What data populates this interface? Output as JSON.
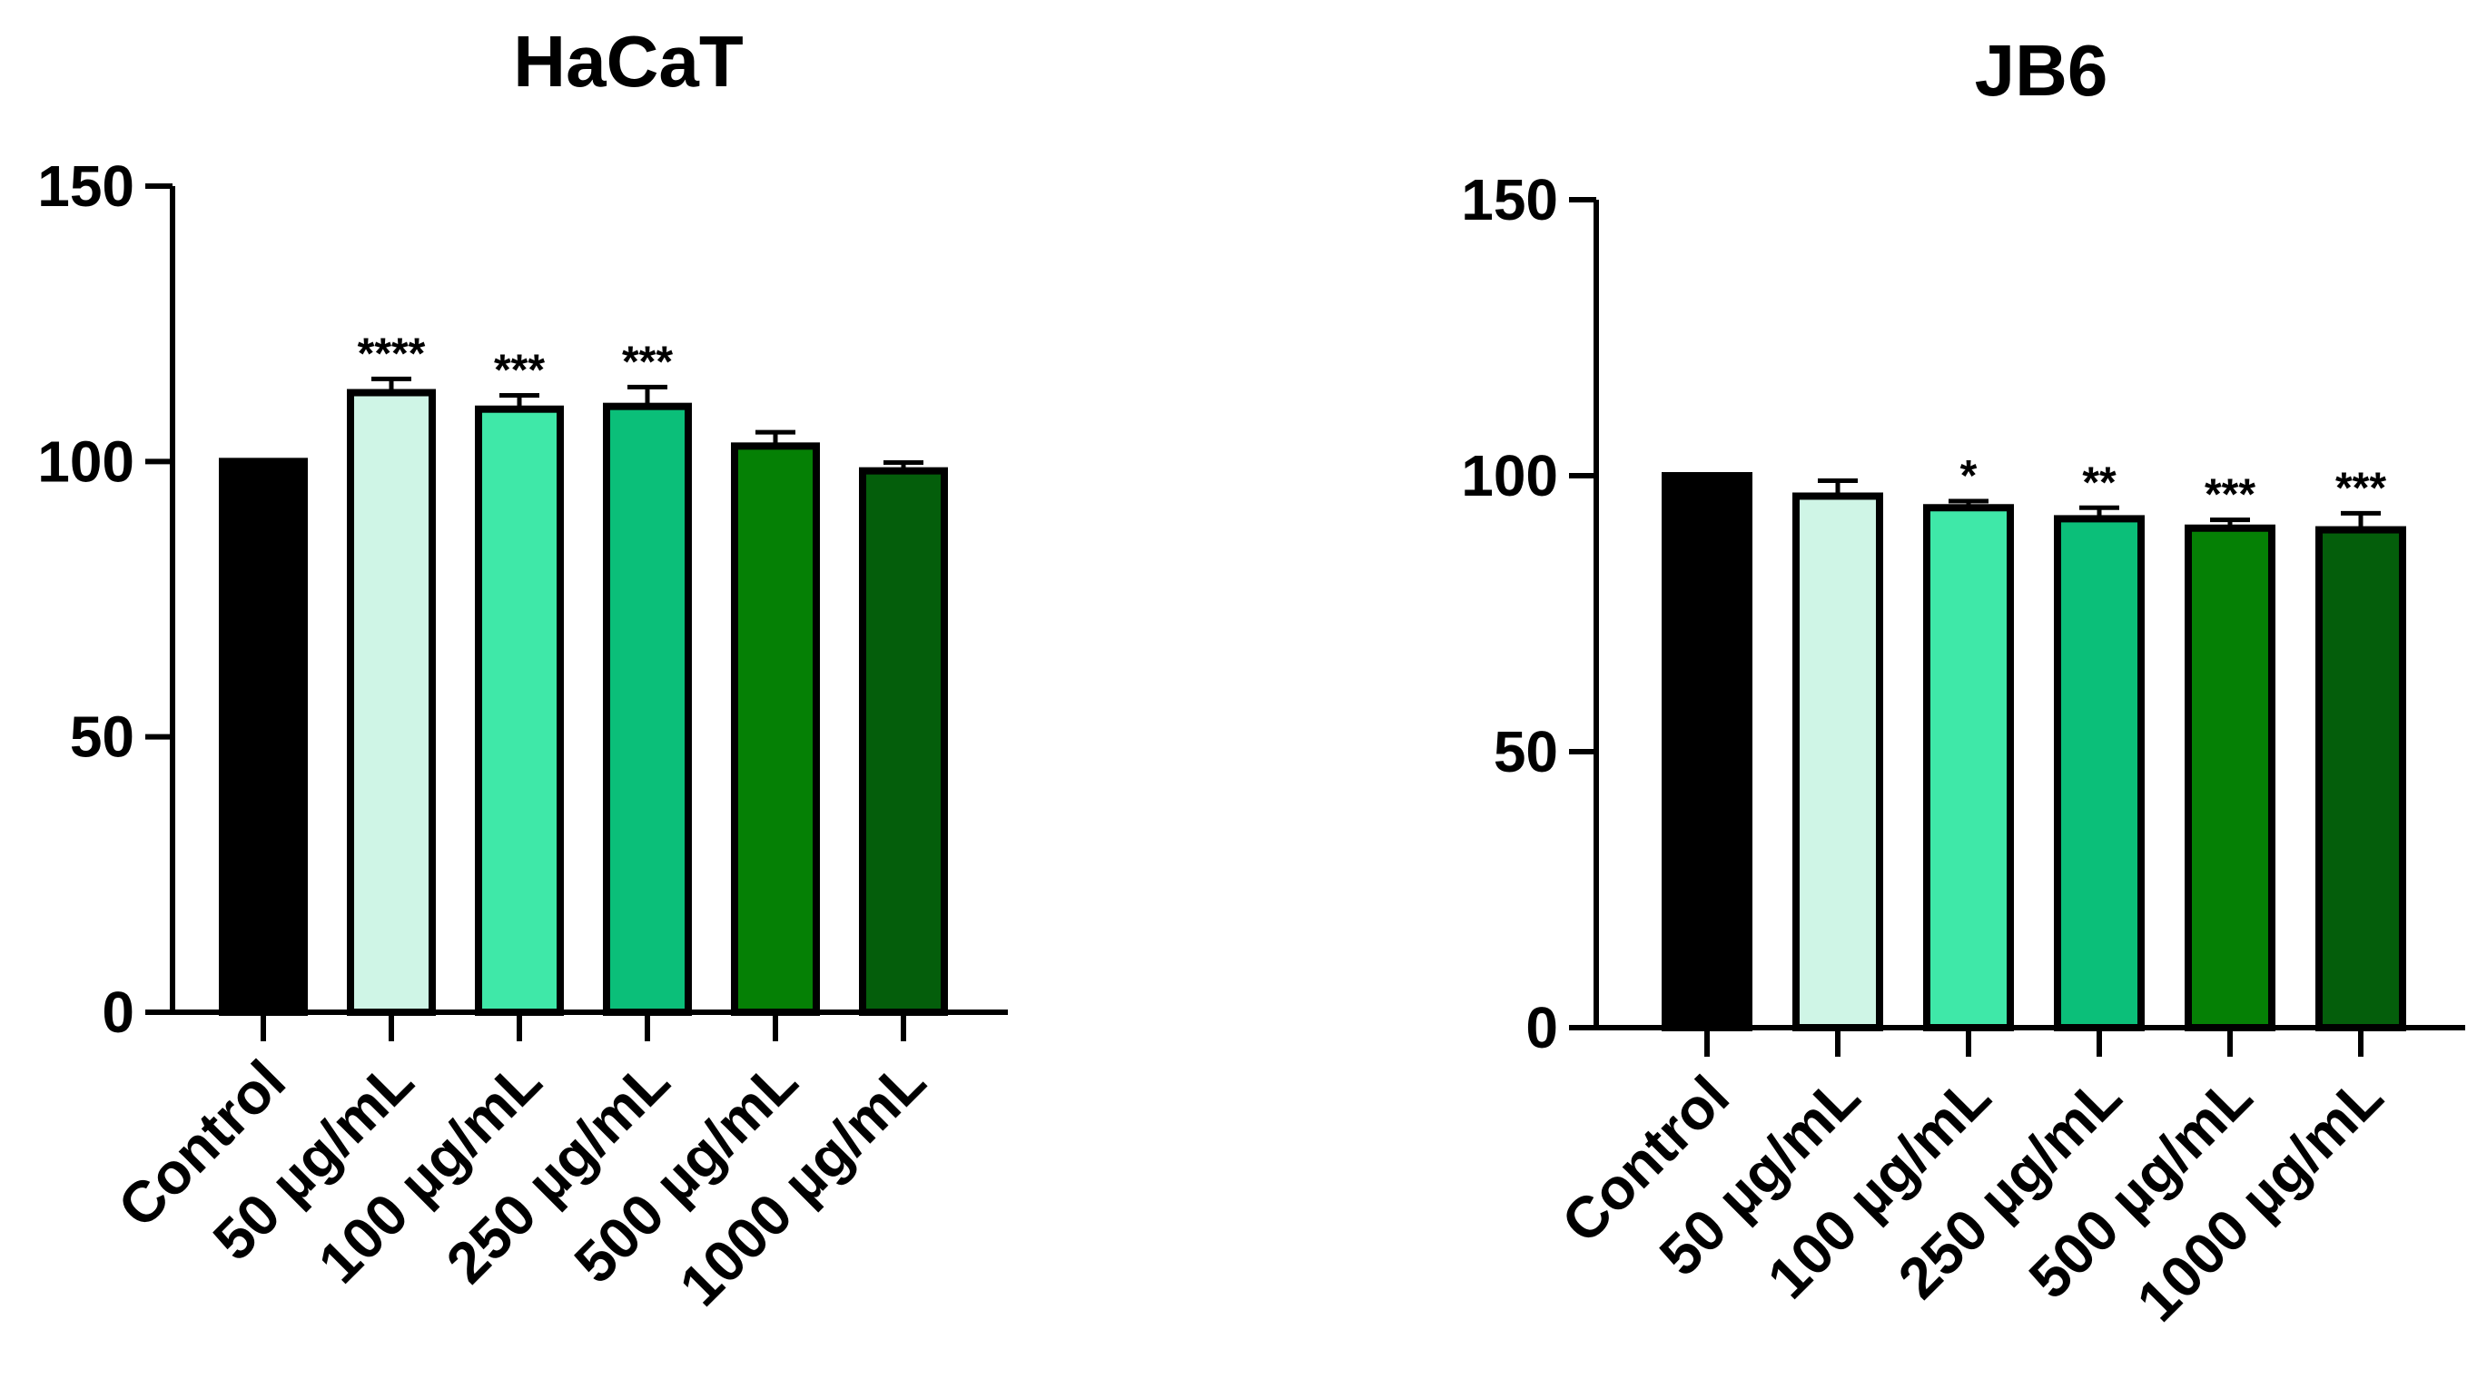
{
  "chart_data": [
    {
      "type": "bar",
      "title": "HaCaT",
      "xlabel": "",
      "ylabel": "",
      "ylim": [
        0,
        150
      ],
      "yticks": [
        0,
        50,
        100,
        150
      ],
      "categories": [
        "Control",
        "50 µg/mL",
        "100 µg/mL",
        "250 µg/mL",
        "500 µg/mL",
        "1000 µg/mL"
      ],
      "values": [
        100,
        112.5,
        109.5,
        110,
        102.8,
        98.3
      ],
      "errors": [
        0,
        2.5,
        2.5,
        3.5,
        2.5,
        1.5
      ],
      "significance": [
        "",
        "****",
        "***",
        "***",
        "",
        ""
      ],
      "colors": [
        "#000000",
        "#cff5e6",
        "#3fe8a8",
        "#0bbf79",
        "#058005",
        "#045e0b"
      ],
      "grid": false,
      "legend": "none"
    },
    {
      "type": "bar",
      "title": "JB6",
      "xlabel": "",
      "ylabel": "",
      "ylim": [
        0,
        150
      ],
      "yticks": [
        0,
        50,
        100,
        150
      ],
      "categories": [
        "Control",
        "50 µg/mL",
        "100 µg/mL",
        "250 µg/mL",
        "500 µg/mL",
        "1000 µg/mL"
      ],
      "values": [
        100,
        96.3,
        94.2,
        92.2,
        90.5,
        90.2
      ],
      "errors": [
        0,
        2.8,
        1.2,
        2.0,
        1.5,
        3.0
      ],
      "significance": [
        "",
        "",
        "*",
        "**",
        "***",
        "***"
      ],
      "colors": [
        "#000000",
        "#cff5e6",
        "#3fe8a8",
        "#0bbf79",
        "#058005",
        "#045e0b"
      ],
      "grid": false,
      "legend": "none"
    }
  ]
}
